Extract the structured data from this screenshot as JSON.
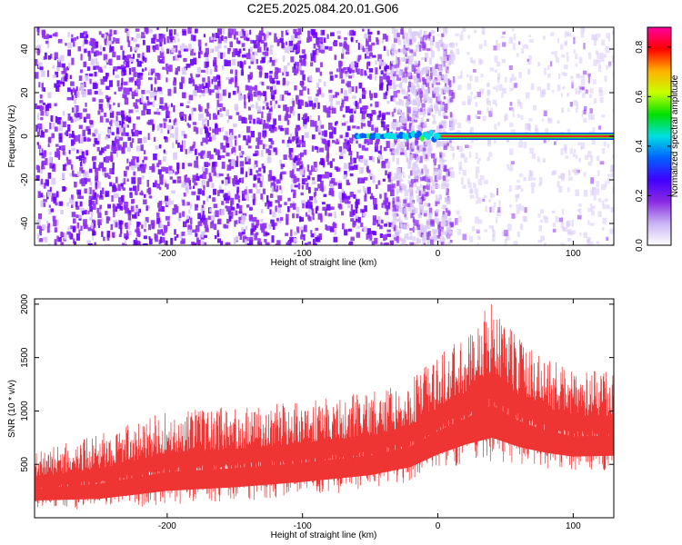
{
  "title": "C2E5.2025.084.20.01.G06",
  "chart_data": [
    {
      "type": "heatmap",
      "xlabel": "Height of straight line (km)",
      "ylabel": "Frequency (Hz)",
      "xlim": [
        -298,
        130
      ],
      "ylim": [
        -50,
        50
      ],
      "xticks": [
        -200,
        -100,
        0,
        100
      ],
      "yticks": [
        -40,
        -20,
        0,
        20,
        40
      ],
      "colorbar": {
        "label": "Normalized spectral amplitude",
        "range": [
          0,
          0.88
        ],
        "ticks": [
          "0.0",
          "0.2",
          "0.4",
          "0.6",
          "0.8"
        ],
        "tick_values": [
          0.0,
          0.2,
          0.4,
          0.6,
          0.8
        ],
        "colormap": [
          "#ffffff",
          "#c8b4f4",
          "#8a2be2",
          "#4000ff",
          "#0060ff",
          "#00e0e0",
          "#00e000",
          "#c8ff00",
          "#ffb000",
          "#ff0000",
          "#ff00a0"
        ]
      },
      "features": {
        "noise_region": {
          "x_range": [
            -298,
            -35
          ],
          "amplitude_approx": 0.1
        },
        "fading_region": {
          "x_range": [
            -35,
            10
          ],
          "amplitude_approx": 0.04
        },
        "sparse_region": {
          "x_range": [
            10,
            130
          ],
          "amplitude_approx": 0.02
        },
        "carrier_line": {
          "frequency_hz": 0,
          "x_range": [
            -60,
            130
          ],
          "amplitude_start": 0.35,
          "amplitude_end": 0.88
        }
      },
      "colors": {
        "low": "#d9c9f7",
        "mid": "#8f2ff0",
        "high": "#6a00ff"
      }
    },
    {
      "type": "area",
      "xlabel": "Height of straight line (km)",
      "ylabel": "SNR (10 * v/v)",
      "xlim": [
        -298,
        130
      ],
      "ylim": [
        0,
        2050
      ],
      "xticks": [
        -200,
        -100,
        0,
        100
      ],
      "yticks": [
        500,
        1000,
        1500,
        2000
      ],
      "envelope": {
        "x": [
          -298,
          -250,
          -200,
          -150,
          -100,
          -50,
          -20,
          0,
          20,
          40,
          60,
          80,
          100,
          130
        ],
        "lower": [
          80,
          70,
          120,
          150,
          200,
          260,
          330,
          430,
          500,
          520,
          480,
          450,
          430,
          440
        ],
        "upper": [
          620,
          780,
          1000,
          1050,
          1100,
          1180,
          1300,
          1520,
          1720,
          2050,
          1700,
          1500,
          1380,
          1380
        ]
      },
      "color": "#ef3434"
    }
  ]
}
